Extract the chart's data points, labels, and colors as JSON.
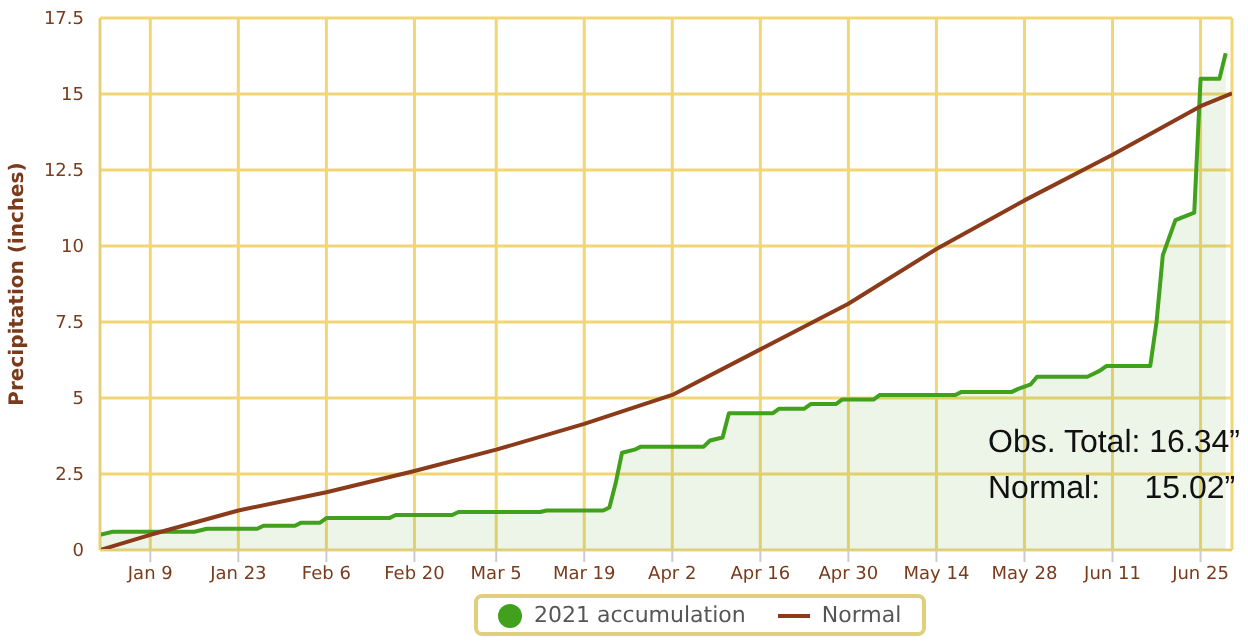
{
  "chart_data": {
    "type": "area",
    "ylabel": "Precipitation (inches)",
    "xlim": [
      "--01-01",
      "--06-30"
    ],
    "xticks": [
      {
        "value": "--01-09",
        "label": "Jan 9"
      },
      {
        "value": "--01-23",
        "label": "Jan 23"
      },
      {
        "value": "--02-06",
        "label": "Feb 6"
      },
      {
        "value": "--02-20",
        "label": "Feb 20"
      },
      {
        "value": "--03-05",
        "label": "Mar 5"
      },
      {
        "value": "--03-19",
        "label": "Mar 19"
      },
      {
        "value": "--04-02",
        "label": "Apr 2"
      },
      {
        "value": "--04-16",
        "label": "Apr 16"
      },
      {
        "value": "--04-30",
        "label": "Apr 30"
      },
      {
        "value": "--05-14",
        "label": "May 14"
      },
      {
        "value": "--05-28",
        "label": "May 28"
      },
      {
        "value": "--06-11",
        "label": "Jun 11"
      },
      {
        "value": "--06-25",
        "label": "Jun 25"
      }
    ],
    "ylim": [
      0,
      17.5
    ],
    "yticks": [
      0,
      2.5,
      5,
      7.5,
      10,
      12.5,
      15,
      17.5
    ],
    "grid": true,
    "legend": "bottom",
    "marker": "none",
    "series": [
      {
        "name": "2021 accumulation",
        "type": "area",
        "color": "#41a01c",
        "x": [
          "--01-01",
          "--01-03",
          "--01-16",
          "--01-18",
          "--01-26",
          "--01-27",
          "--02-01",
          "--02-02",
          "--02-05",
          "--02-06",
          "--02-16",
          "--02-17",
          "--02-26",
          "--02-27",
          "--03-12",
          "--03-13",
          "--03-22",
          "--03-23",
          "--03-24",
          "--03-25",
          "--03-27",
          "--03-28",
          "--04-07",
          "--04-08",
          "--04-10",
          "--04-11",
          "--04-18",
          "--04-19",
          "--04-23",
          "--04-24",
          "--04-28",
          "--04-29",
          "--05-04",
          "--05-05",
          "--05-17",
          "--05-18",
          "--05-26",
          "--05-27",
          "--05-29",
          "--05-30",
          "--06-07",
          "--06-08",
          "--06-09",
          "--06-10",
          "--06-17",
          "--06-18",
          "--06-19",
          "--06-21",
          "--06-24",
          "--06-25",
          "--06-26",
          "--06-28",
          "--06-29"
        ],
        "values": [
          0.5,
          0.6,
          0.6,
          0.7,
          0.7,
          0.8,
          0.8,
          0.9,
          0.9,
          1.05,
          1.05,
          1.15,
          1.15,
          1.25,
          1.25,
          1.3,
          1.3,
          1.4,
          2.2,
          3.2,
          3.3,
          3.4,
          3.4,
          3.6,
          3.7,
          4.5,
          4.5,
          4.65,
          4.65,
          4.8,
          4.8,
          4.95,
          4.95,
          5.1,
          5.1,
          5.2,
          5.2,
          5.3,
          5.45,
          5.7,
          5.7,
          5.8,
          5.9,
          6.05,
          6.05,
          7.5,
          9.7,
          10.85,
          11.1,
          15.5,
          15.5,
          15.5,
          16.34
        ]
      },
      {
        "name": "Normal",
        "type": "line",
        "color": "#8b3a1a",
        "x": [
          "--01-01",
          "--01-09",
          "--01-23",
          "--02-06",
          "--02-20",
          "--03-05",
          "--03-19",
          "--04-02",
          "--04-16",
          "--04-30",
          "--05-14",
          "--05-28",
          "--06-11",
          "--06-25",
          "--06-30"
        ],
        "values": [
          0,
          0.5,
          1.3,
          1.9,
          2.6,
          3.3,
          4.15,
          5.1,
          6.6,
          8.1,
          9.9,
          11.5,
          13.0,
          14.6,
          15.02
        ]
      }
    ],
    "annotations": [
      "Obs. Total: 16.34”",
      "Normal:     15.02”"
    ]
  }
}
